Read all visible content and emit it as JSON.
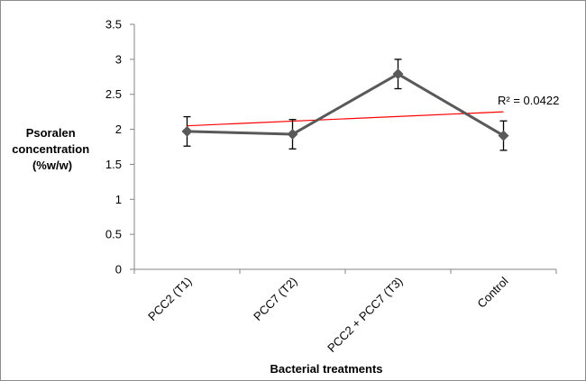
{
  "chart_data": {
    "type": "line",
    "categories": [
      "PCC2 (T1)",
      "PCC7 (T2)",
      "PCC2 + PCC7 (T3)",
      "Control"
    ],
    "series": [
      {
        "values": [
          1.97,
          1.93,
          2.79,
          1.91
        ],
        "error": [
          0.21,
          0.21,
          0.21,
          0.21
        ],
        "color": "#595959",
        "marker": "diamond"
      }
    ],
    "trendline": {
      "type": "linear",
      "start": 2.05,
      "end": 2.25,
      "color": "#ff0000",
      "label": "R² = 0.0422"
    },
    "ylabel_lines": [
      "Psoralen",
      "concentration",
      "(%w/w)"
    ],
    "xlabel": "Bacterial treatments",
    "ylim": [
      0,
      3.5
    ],
    "yticks": [
      "0",
      "0.5",
      "1",
      "1.5",
      "2",
      "2.5",
      "3",
      "3.5"
    ],
    "ytick_values": [
      0,
      0.5,
      1,
      1.5,
      2,
      2.5,
      3,
      3.5
    ],
    "grid": false,
    "legend": "none"
  }
}
